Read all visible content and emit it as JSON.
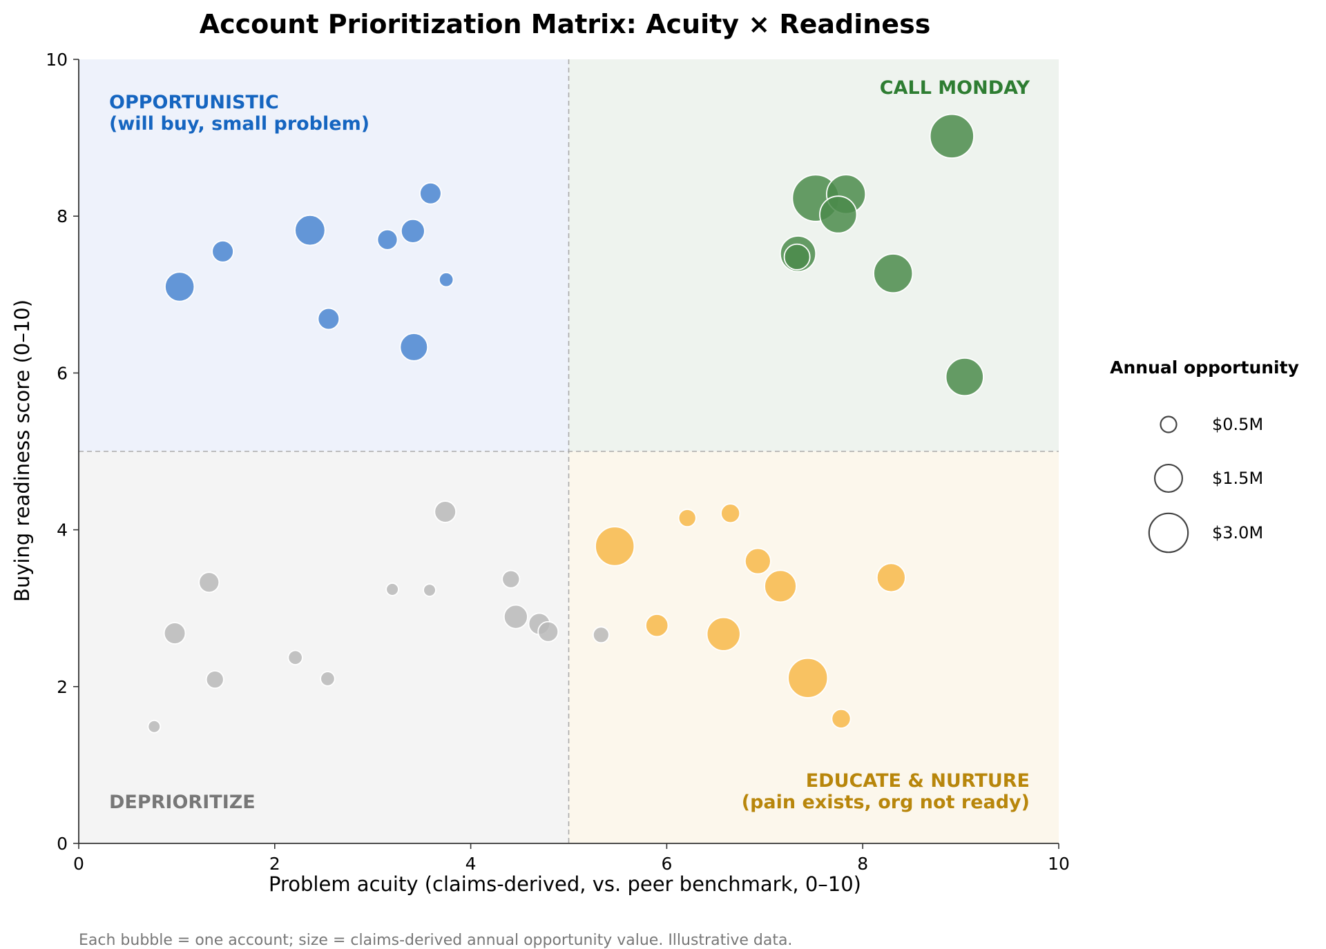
{
  "chart_data": {
    "type": "scatter",
    "title": "Account Prioritization Matrix: Acuity × Readiness",
    "xlabel": "Problem acuity  (claims-derived, vs. peer benchmark, 0–10)",
    "ylabel": "Buying readiness score  (0–10)",
    "xlim": [
      0,
      10
    ],
    "ylim": [
      0,
      10
    ],
    "x_ticks": [
      "0",
      "2",
      "4",
      "6",
      "8",
      "10"
    ],
    "y_ticks": [
      "0",
      "2",
      "4",
      "6",
      "8",
      "10"
    ],
    "threshold_x": 5,
    "threshold_y": 5,
    "footnote": "Each bubble = one account; size = claims-derived annual opportunity value. Illustrative data.",
    "quadrants": [
      {
        "key": "opportunistic",
        "lines": [
          "OPPORTUNISTIC",
          "(will buy, small problem)"
        ],
        "color": "#1565c0",
        "bg": "#eef2fb"
      },
      {
        "key": "call_monday",
        "lines": [
          "CALL MONDAY"
        ],
        "color": "#2e7d32",
        "bg": "#eef3ee"
      },
      {
        "key": "deprioritize",
        "lines": [
          "DEPRIORITIZE"
        ],
        "color": "#777777",
        "bg": "#f4f4f4"
      },
      {
        "key": "educate",
        "lines": [
          "EDUCATE & NURTURE",
          "(pain exists, org not ready)"
        ],
        "color": "#b8860b",
        "bg": "#fcf7ec"
      }
    ],
    "legend": {
      "title": "Annual opportunity",
      "items": [
        {
          "label": "$0.5M",
          "value": 0.5
        },
        {
          "label": "$1.5M",
          "value": 1.5
        },
        {
          "label": "$3.0M",
          "value": 3.0
        }
      ]
    },
    "series": [
      {
        "key": "opportunistic",
        "color": "#4a86d0",
        "points": [
          {
            "x": 1.03,
            "y": 7.1,
            "size": 1.7
          },
          {
            "x": 1.47,
            "y": 7.55,
            "size": 0.9
          },
          {
            "x": 2.36,
            "y": 7.82,
            "size": 1.8
          },
          {
            "x": 2.55,
            "y": 6.69,
            "size": 0.9
          },
          {
            "x": 3.15,
            "y": 7.7,
            "size": 0.8
          },
          {
            "x": 3.41,
            "y": 7.81,
            "size": 1.1
          },
          {
            "x": 3.42,
            "y": 6.33,
            "size": 1.5
          },
          {
            "x": 3.59,
            "y": 8.29,
            "size": 0.9
          },
          {
            "x": 3.75,
            "y": 7.19,
            "size": 0.4
          }
        ]
      },
      {
        "key": "call_monday",
        "color": "#4b8b4b",
        "points": [
          {
            "x": 8.91,
            "y": 9.02,
            "size": 3.8
          },
          {
            "x": 7.52,
            "y": 8.23,
            "size": 4.3
          },
          {
            "x": 7.83,
            "y": 8.28,
            "size": 3.0
          },
          {
            "x": 7.75,
            "y": 8.02,
            "size": 2.7
          },
          {
            "x": 7.34,
            "y": 7.52,
            "size": 2.5
          },
          {
            "x": 7.33,
            "y": 7.48,
            "size": 1.3
          },
          {
            "x": 8.31,
            "y": 7.27,
            "size": 3.0
          },
          {
            "x": 9.04,
            "y": 5.95,
            "size": 2.8
          }
        ]
      },
      {
        "key": "deprioritize",
        "color": "#b8b8b8",
        "points": [
          {
            "x": 0.77,
            "y": 1.49,
            "size": 0.3
          },
          {
            "x": 0.98,
            "y": 2.68,
            "size": 0.9
          },
          {
            "x": 1.33,
            "y": 3.33,
            "size": 0.8
          },
          {
            "x": 1.39,
            "y": 2.09,
            "size": 0.6
          },
          {
            "x": 2.21,
            "y": 2.37,
            "size": 0.4
          },
          {
            "x": 2.54,
            "y": 2.1,
            "size": 0.4
          },
          {
            "x": 3.2,
            "y": 3.24,
            "size": 0.3
          },
          {
            "x": 3.58,
            "y": 3.23,
            "size": 0.3
          },
          {
            "x": 3.74,
            "y": 4.23,
            "size": 0.9
          },
          {
            "x": 4.41,
            "y": 3.37,
            "size": 0.6
          },
          {
            "x": 4.46,
            "y": 2.89,
            "size": 1.1
          },
          {
            "x": 4.7,
            "y": 2.8,
            "size": 0.9
          },
          {
            "x": 4.79,
            "y": 2.7,
            "size": 0.8
          },
          {
            "x": 5.33,
            "y": 2.66,
            "size": 0.5
          }
        ]
      },
      {
        "key": "educate",
        "color": "#f7b84a",
        "points": [
          {
            "x": 5.47,
            "y": 3.79,
            "size": 3.0
          },
          {
            "x": 5.9,
            "y": 2.78,
            "size": 1.0
          },
          {
            "x": 6.21,
            "y": 4.15,
            "size": 0.6
          },
          {
            "x": 6.65,
            "y": 4.21,
            "size": 0.7
          },
          {
            "x": 6.58,
            "y": 2.67,
            "size": 2.2
          },
          {
            "x": 6.93,
            "y": 3.6,
            "size": 1.3
          },
          {
            "x": 7.16,
            "y": 3.28,
            "size": 2.0
          },
          {
            "x": 7.44,
            "y": 2.11,
            "size": 3.1
          },
          {
            "x": 7.78,
            "y": 1.59,
            "size": 0.7
          },
          {
            "x": 8.29,
            "y": 3.39,
            "size": 1.6
          }
        ]
      }
    ]
  }
}
